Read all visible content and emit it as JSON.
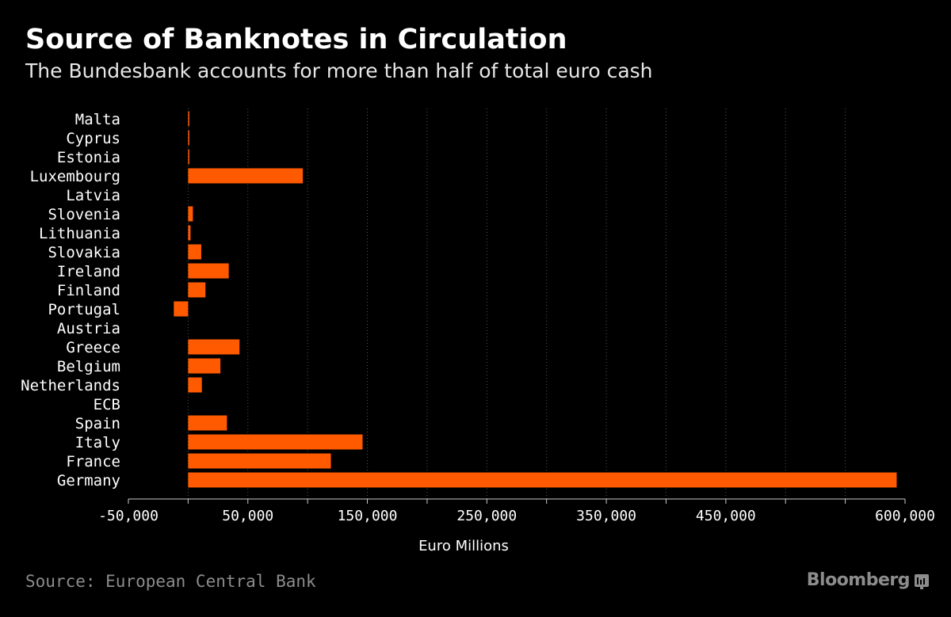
{
  "header": {
    "title": "Source of Banknotes in Circulation",
    "subtitle": "The Bundesbank accounts for more than half of total euro cash"
  },
  "footer": {
    "source": "Source: European Central Bank",
    "brand": "Bloomberg",
    "brand_icon": "bloomberg-terminal-icon"
  },
  "colors": {
    "background": "#000000",
    "bar": "#ff5a00",
    "grid": "#555555",
    "text": "#ffffff",
    "muted": "#8c8c8c"
  },
  "chart_data": {
    "type": "bar",
    "orientation": "horizontal",
    "title": "Source of Banknotes in Circulation",
    "subtitle": "The Bundesbank accounts for more than half of total euro cash",
    "xlabel": "Euro Millions",
    "ylabel": "",
    "categories": [
      "Malta",
      "Cyprus",
      "Estonia",
      "Luxembourg",
      "Latvia",
      "Slovenia",
      "Lithuania",
      "Slovakia",
      "Ireland",
      "Finland",
      "Portugal",
      "Austria",
      "Greece",
      "Belgium",
      "Netherlands",
      "ECB",
      "Spain",
      "Italy",
      "France",
      "Germany"
    ],
    "values": [
      1000,
      1000,
      1000,
      96000,
      0,
      4000,
      2000,
      11000,
      34000,
      14500,
      -12000,
      0,
      43000,
      27000,
      11500,
      0,
      32500,
      146000,
      119500,
      593000
    ],
    "xlim": [
      -50000,
      600000
    ],
    "xticks": [
      -50000,
      50000,
      150000,
      250000,
      350000,
      450000,
      600000
    ],
    "xtick_labels": [
      "-50,000",
      "50,000",
      "150,000",
      "250,000",
      "350,000",
      "450,000",
      "600,000"
    ],
    "grid": true,
    "grid_style": "dotted-vertical",
    "legend": "none",
    "color": "#ff5a00"
  }
}
